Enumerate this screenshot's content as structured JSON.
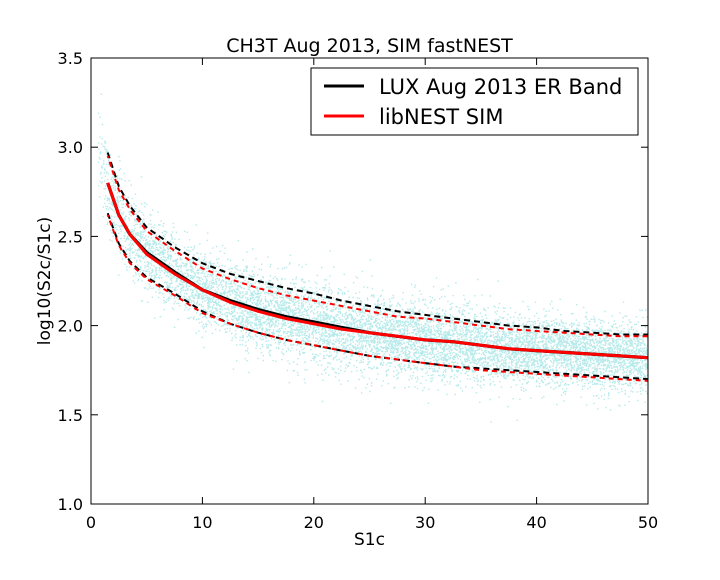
{
  "chart_data": {
    "type": "scatter",
    "title": "CH3T Aug 2013, SIM fastNEST",
    "xlabel": "S1c",
    "ylabel": "log10(S2c/S1c)",
    "xlim": [
      0,
      50
    ],
    "ylim": [
      1.0,
      3.5
    ],
    "x_ticks": [
      "0",
      "10",
      "20",
      "30",
      "40",
      "50"
    ],
    "y_ticks": [
      "1.0",
      "1.5",
      "2.0",
      "2.5",
      "3.0",
      "3.5"
    ],
    "grid": false,
    "legend": {
      "placement": "top-right",
      "entries": [
        {
          "label": "LUX Aug 2013 ER Band",
          "color": "#000000"
        },
        {
          "label": "libNEST SIM",
          "color": "#ff0000"
        }
      ]
    },
    "scatter_color": "#2ec4c4",
    "series": [
      {
        "name": "LUX Aug 2013 ER Band",
        "color": "#000000",
        "x": [
          1.5,
          2.5,
          3.5,
          5,
          7.5,
          10,
          12.5,
          15,
          17.5,
          20,
          22.5,
          25,
          27.5,
          30,
          32.5,
          35,
          37.5,
          40,
          42.5,
          45,
          47.5,
          50
        ],
        "mean": [
          2.8,
          2.62,
          2.51,
          2.41,
          2.3,
          2.2,
          2.14,
          2.09,
          2.05,
          2.02,
          1.99,
          1.96,
          1.94,
          1.92,
          1.91,
          1.89,
          1.87,
          1.86,
          1.85,
          1.84,
          1.83,
          1.82
        ],
        "upper": [
          2.97,
          2.78,
          2.67,
          2.55,
          2.44,
          2.35,
          2.29,
          2.25,
          2.21,
          2.18,
          2.14,
          2.11,
          2.08,
          2.06,
          2.04,
          2.02,
          2.0,
          1.99,
          1.97,
          1.96,
          1.95,
          1.95
        ],
        "lower": [
          2.63,
          2.46,
          2.36,
          2.27,
          2.18,
          2.08,
          2.01,
          1.96,
          1.92,
          1.89,
          1.86,
          1.83,
          1.81,
          1.79,
          1.77,
          1.76,
          1.75,
          1.74,
          1.73,
          1.72,
          1.71,
          1.7
        ]
      },
      {
        "name": "libNEST SIM",
        "color": "#ff0000",
        "x": [
          1.5,
          2.5,
          3.5,
          5,
          7.5,
          10,
          12.5,
          15,
          17.5,
          20,
          22.5,
          25,
          27.5,
          30,
          32.5,
          35,
          37.5,
          40,
          42.5,
          45,
          47.5,
          50
        ],
        "mean": [
          2.8,
          2.62,
          2.51,
          2.4,
          2.29,
          2.2,
          2.13,
          2.08,
          2.04,
          2.01,
          1.98,
          1.96,
          1.94,
          1.92,
          1.91,
          1.89,
          1.87,
          1.86,
          1.85,
          1.84,
          1.83,
          1.82
        ],
        "upper": [
          2.95,
          2.76,
          2.65,
          2.53,
          2.42,
          2.32,
          2.26,
          2.21,
          2.17,
          2.14,
          2.11,
          2.08,
          2.05,
          2.04,
          2.02,
          2.0,
          1.98,
          1.97,
          1.96,
          1.95,
          1.94,
          1.94
        ],
        "lower": [
          2.62,
          2.45,
          2.35,
          2.26,
          2.17,
          2.07,
          2.01,
          1.96,
          1.92,
          1.89,
          1.86,
          1.83,
          1.81,
          1.79,
          1.77,
          1.75,
          1.74,
          1.73,
          1.72,
          1.71,
          1.7,
          1.69
        ]
      }
    ]
  }
}
